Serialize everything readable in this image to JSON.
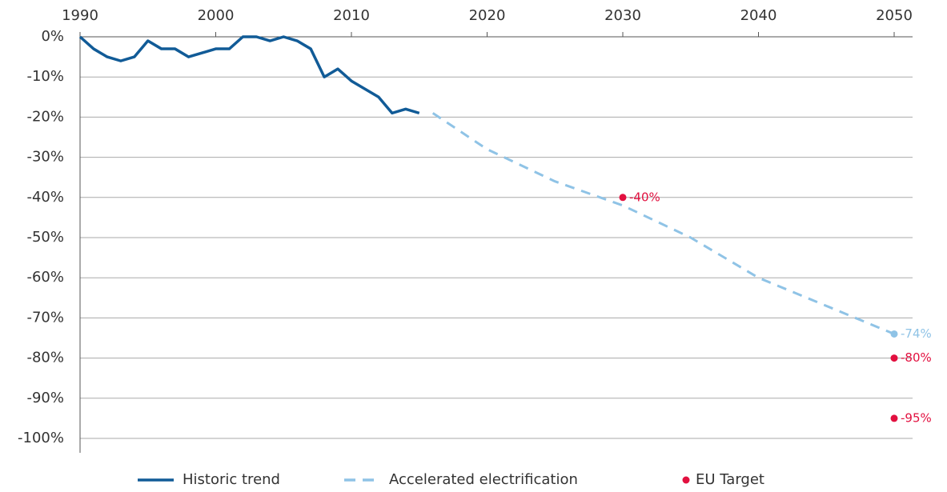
{
  "chart_data": {
    "type": "line",
    "xlim": [
      1990,
      2050
    ],
    "xticks": [
      1990,
      2000,
      2010,
      2020,
      2030,
      2040,
      2050
    ],
    "ylim": [
      -100,
      0
    ],
    "yticks": [
      {
        "value": 0,
        "label": "0%"
      },
      {
        "value": -10,
        "label": "-10%"
      },
      {
        "value": -20,
        "label": "-20%"
      },
      {
        "value": -30,
        "label": "-30%"
      },
      {
        "value": -40,
        "label": "-40%"
      },
      {
        "value": -50,
        "label": "-50%"
      },
      {
        "value": -60,
        "label": "-60%"
      },
      {
        "value": -70,
        "label": "-70%"
      },
      {
        "value": -80,
        "label": "-80%"
      },
      {
        "value": -90,
        "label": "-90%"
      },
      {
        "value": -100,
        "label": "-100%"
      }
    ],
    "grid": true,
    "series": [
      {
        "name": "Historic trend",
        "type": "line",
        "style": "solid",
        "color": "#115b97",
        "x": [
          1990,
          1991,
          1992,
          1993,
          1994,
          1995,
          1996,
          1997,
          1998,
          1999,
          2000,
          2001,
          2002,
          2003,
          2004,
          2005,
          2006,
          2007,
          2008,
          2009,
          2010,
          2011,
          2012,
          2013,
          2014,
          2015
        ],
        "values": [
          0,
          -3,
          -5,
          -6,
          -5,
          -1,
          -3,
          -3,
          -5,
          -4,
          -3,
          -3,
          0,
          0,
          -1,
          0,
          -1,
          -3,
          -10,
          -8,
          -11,
          -13,
          -15,
          -19,
          -18,
          -19
        ]
      },
      {
        "name": "Accelerated electrification",
        "type": "line",
        "style": "dashed",
        "color": "#8fc3e6",
        "x": [
          2016,
          2020,
          2025,
          2030,
          2035,
          2040,
          2045,
          2050
        ],
        "values": [
          -19,
          -28,
          -36,
          -42,
          -50,
          -60,
          -67,
          -74
        ],
        "value_labels": [
          null,
          null,
          null,
          null,
          null,
          null,
          null,
          "-74%"
        ]
      },
      {
        "name": "EU Target",
        "type": "scatter",
        "color": "#e2103f",
        "x": [
          2030,
          2050,
          2050
        ],
        "values": [
          -40,
          -80,
          -95
        ],
        "value_labels": [
          "-40%",
          "-80%",
          "-95%"
        ]
      }
    ]
  }
}
